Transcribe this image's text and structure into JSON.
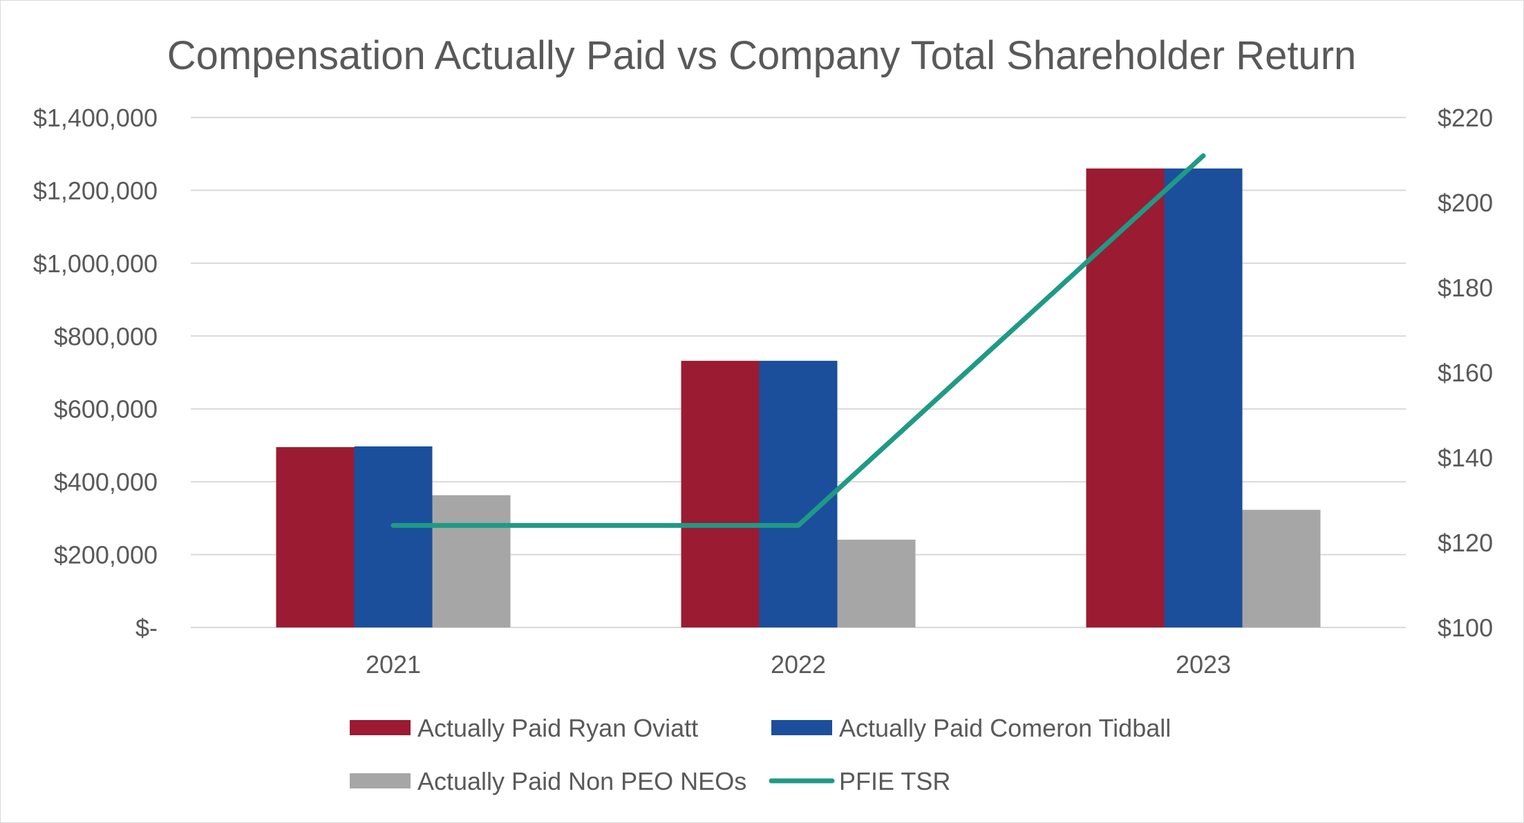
{
  "chart_data": {
    "type": "bar",
    "title": "Compensation Actually Paid vs Company Total Shareholder Return",
    "categories": [
      "2021",
      "2022",
      "2023"
    ],
    "y_left": {
      "ticks": [
        "$-",
        "$200,000",
        "$400,000",
        "$600,000",
        "$800,000",
        "$1,000,000",
        "$1,200,000",
        "$1,400,000"
      ],
      "range": [
        0,
        1400000
      ]
    },
    "y_right": {
      "ticks": [
        "$100",
        "$120",
        "$140",
        "$160",
        "$180",
        "$200",
        "$220"
      ],
      "range": [
        100,
        220
      ]
    },
    "series": [
      {
        "name": "Actually Paid Ryan Oviatt",
        "kind": "bar",
        "axis": "left",
        "color": "#9b1b32",
        "values": [
          495000,
          732000,
          1260000
        ]
      },
      {
        "name": "Actually Paid Comeron Tidball",
        "kind": "bar",
        "axis": "left",
        "color": "#1b4f9c",
        "values": [
          497000,
          732000,
          1260000
        ]
      },
      {
        "name": "Actually Paid Non PEO  NEOs",
        "kind": "bar",
        "axis": "left",
        "color": "#a6a6a6",
        "values": [
          363000,
          241000,
          323000
        ]
      },
      {
        "name": "PFIE TSR",
        "kind": "line",
        "axis": "right",
        "color": "#1f9a85",
        "values": [
          124,
          124,
          211
        ]
      }
    ],
    "grid": true,
    "legend_position": "bottom",
    "colors": {
      "gridline": "#d9d9d9",
      "text": "#595959",
      "border": "#d9d9d9"
    }
  }
}
